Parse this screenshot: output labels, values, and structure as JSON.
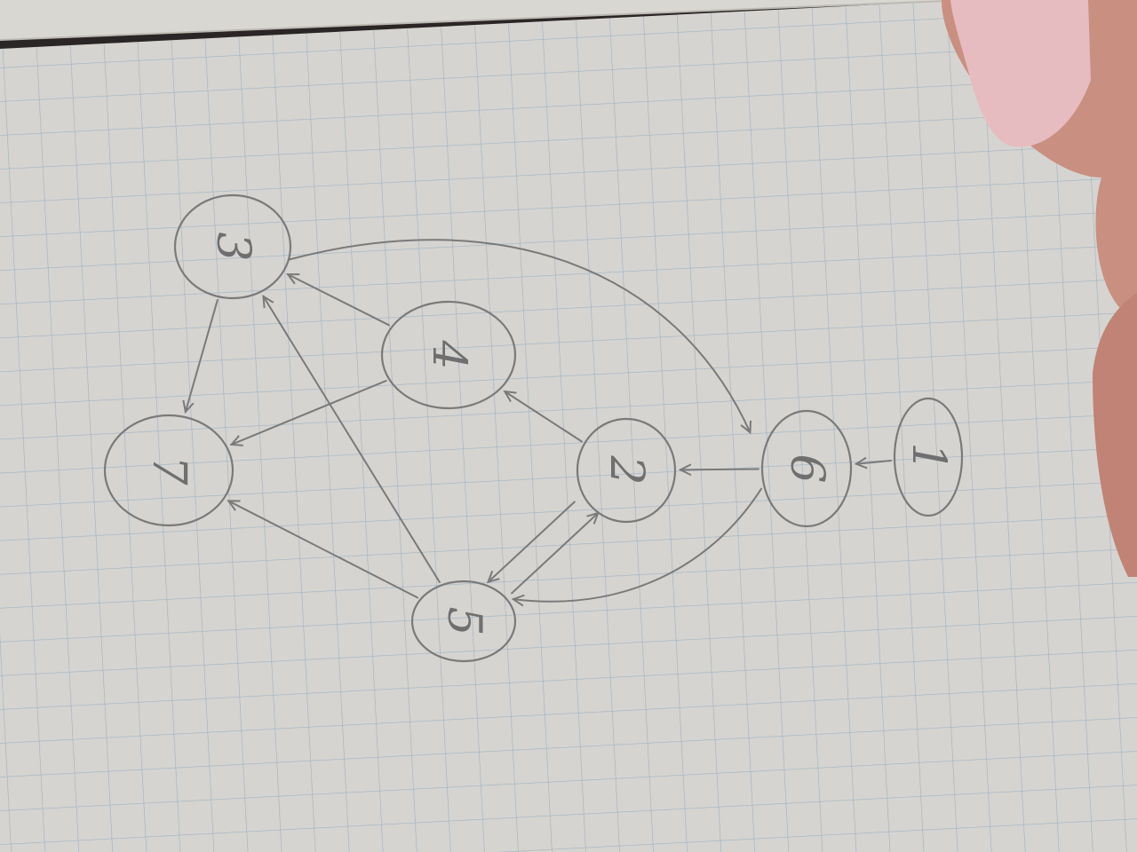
{
  "colors": {
    "paper": "#d6d4d0",
    "grid": "#9fb3c4",
    "pencil": "#7a7a7a",
    "background": "#2a2626",
    "nail": "#e7bcc0",
    "skin": "#c98f80"
  },
  "graph": {
    "nodes": [
      {
        "id": "n1",
        "label": "1"
      },
      {
        "id": "n2",
        "label": "2"
      },
      {
        "id": "n3",
        "label": "3"
      },
      {
        "id": "n4",
        "label": "4"
      },
      {
        "id": "n5",
        "label": "5"
      },
      {
        "id": "n6",
        "label": "6"
      },
      {
        "id": "n7",
        "label": "7"
      }
    ],
    "edges": [
      {
        "from": "3",
        "to": "6"
      },
      {
        "from": "3",
        "to": "7"
      },
      {
        "from": "4",
        "to": "3"
      },
      {
        "from": "4",
        "to": "7"
      },
      {
        "from": "2",
        "to": "4"
      },
      {
        "from": "5",
        "to": "3"
      },
      {
        "from": "5",
        "to": "7"
      },
      {
        "from": "5",
        "to": "2"
      },
      {
        "from": "2",
        "to": "5"
      },
      {
        "from": "6",
        "to": "2"
      },
      {
        "from": "6",
        "to": "5"
      },
      {
        "from": "1",
        "to": "6"
      }
    ]
  }
}
